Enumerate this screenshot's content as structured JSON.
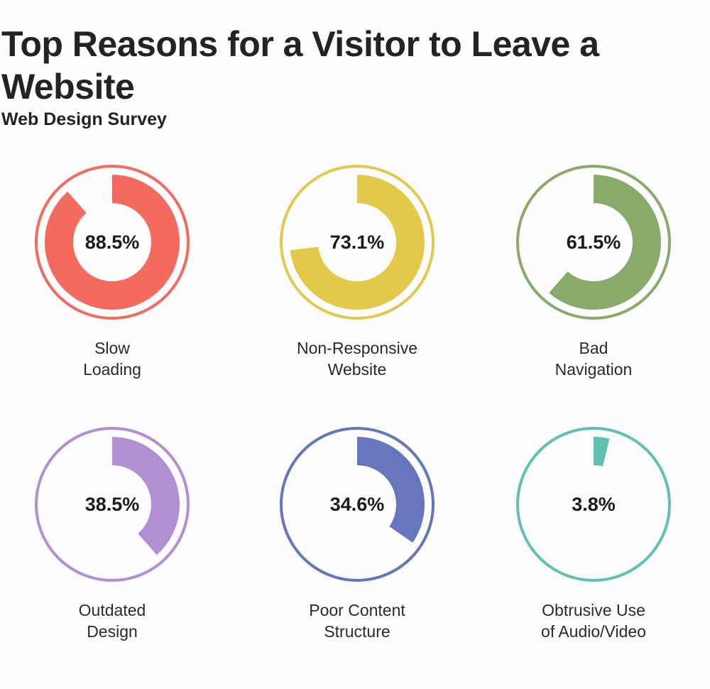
{
  "title": "Top Reasons for a Visitor to Leave a Website",
  "subtitle": "Web Design Survey",
  "chart_data": {
    "type": "donut-gauges",
    "title": "Top Reasons for a Visitor to Leave a Website",
    "subtitle": "Web Design Survey",
    "unit": "%",
    "items": [
      {
        "label_lines": [
          "Slow",
          "Loading"
        ],
        "value": 88.5,
        "display": "88.5%",
        "color": "#f26b5e"
      },
      {
        "label_lines": [
          "Non-Responsive",
          "Website"
        ],
        "value": 73.1,
        "display": "73.1%",
        "color": "#e3c94a"
      },
      {
        "label_lines": [
          "Bad",
          "Navigation"
        ],
        "value": 61.5,
        "display": "61.5%",
        "color": "#88ab6a"
      },
      {
        "label_lines": [
          "Outdated",
          "Design"
        ],
        "value": 38.5,
        "display": "38.5%",
        "color": "#b28fd2"
      },
      {
        "label_lines": [
          "Poor Content",
          "Structure"
        ],
        "value": 34.6,
        "display": "34.6%",
        "color": "#6576bd"
      },
      {
        "label_lines": [
          "Obtrusive Use",
          "of Audio/Video"
        ],
        "value": 3.8,
        "display": "3.8%",
        "color": "#5ec1b1"
      }
    ]
  }
}
